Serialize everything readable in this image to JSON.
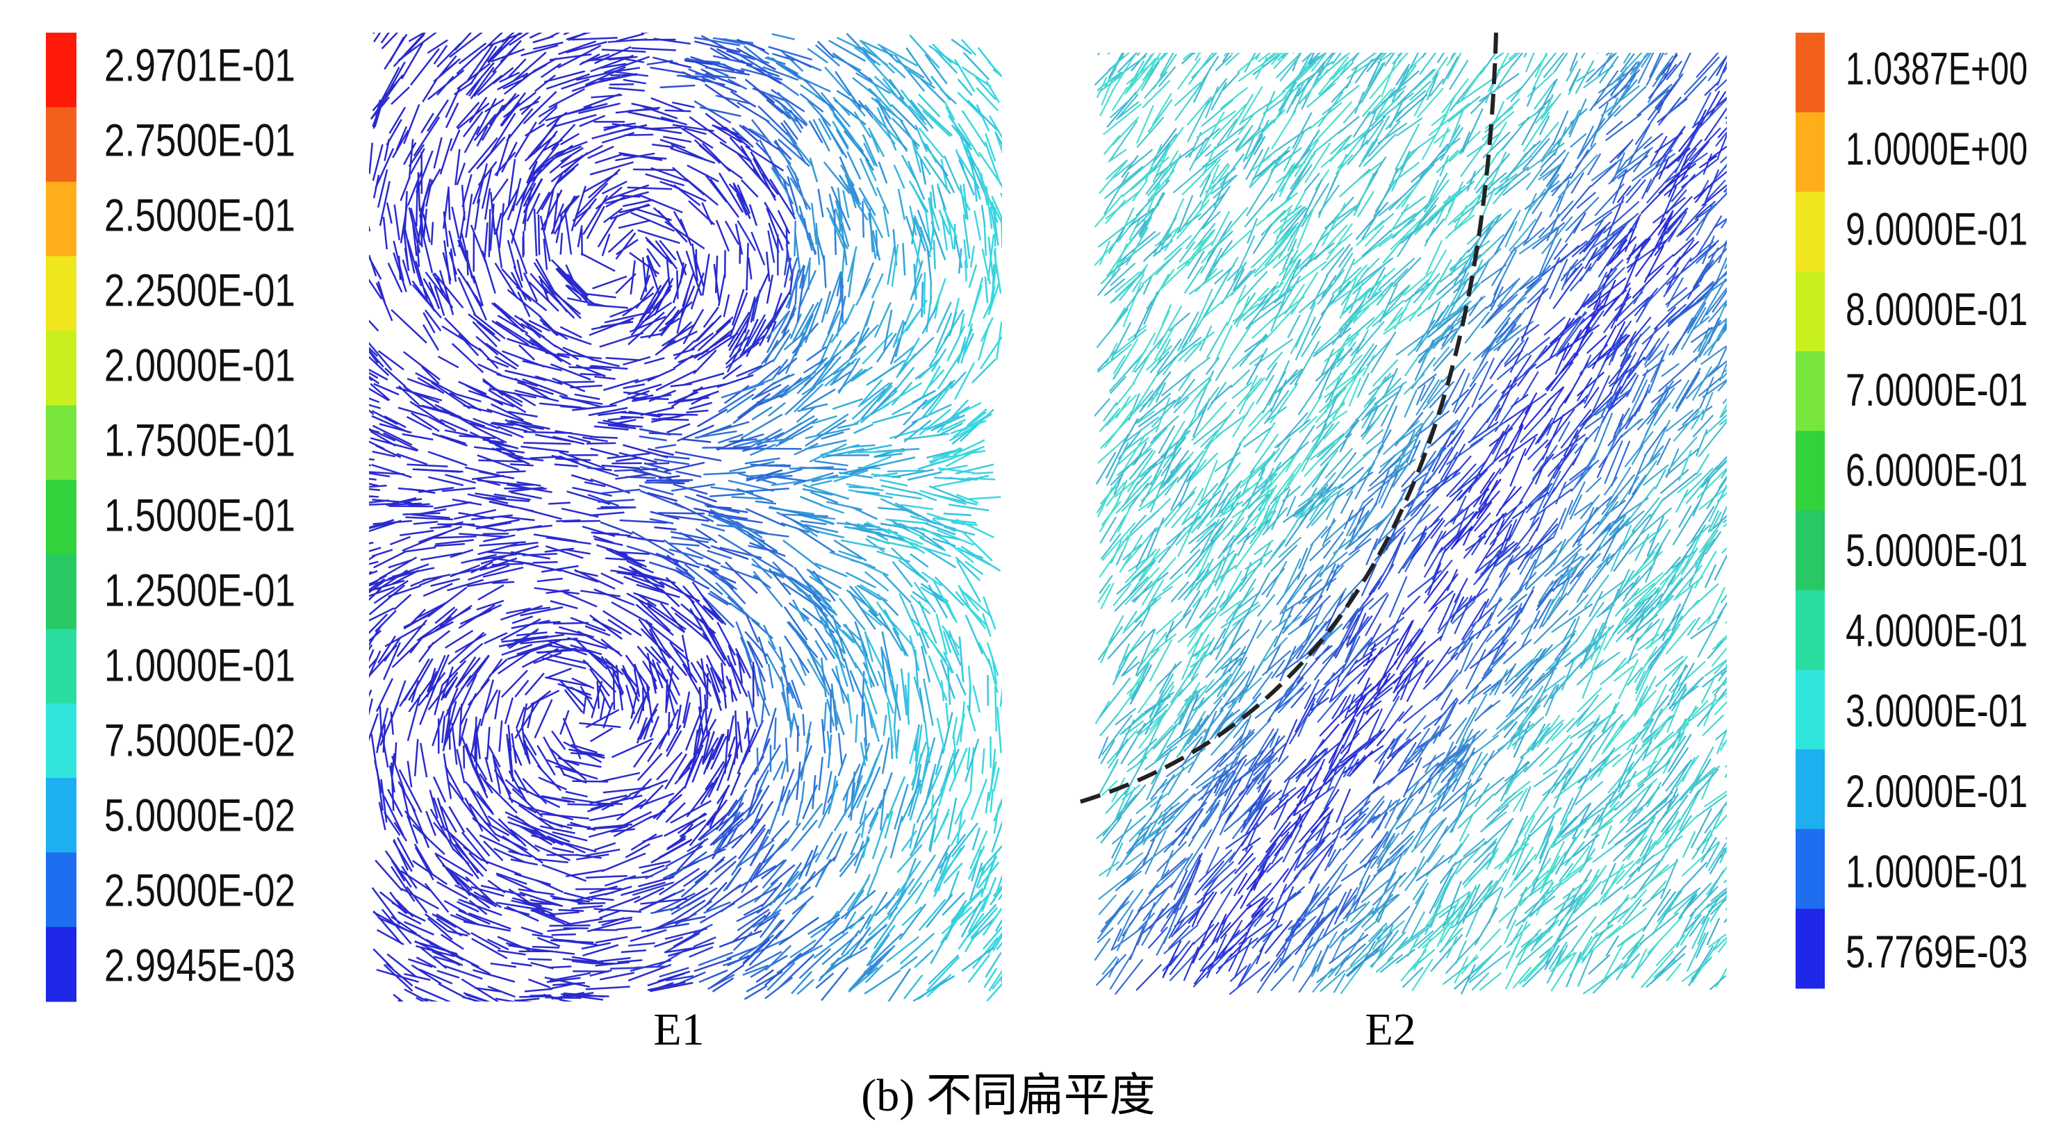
{
  "left_legend": {
    "labels": [
      "2.9701E-01",
      "2.7500E-01",
      "2.5000E-01",
      "2.2500E-01",
      "2.0000E-01",
      "1.7500E-01",
      "1.5000E-01",
      "1.2500E-01",
      "1.0000E-01",
      "7.5000E-02",
      "5.0000E-02",
      "2.5000E-02",
      "2.9945E-03"
    ]
  },
  "right_legend": {
    "labels": [
      "1.0387E+00",
      "1.0000E+00",
      "9.0000E-01",
      "8.0000E-01",
      "7.0000E-01",
      "6.0000E-01",
      "5.0000E-01",
      "4.0000E-01",
      "3.0000E-01",
      "2.0000E-01",
      "1.0000E-01",
      "5.7769E-03"
    ]
  },
  "panels": [
    {
      "label": "E1"
    },
    {
      "label": "E2"
    }
  ],
  "caption": "(b) 不同扁平度"
}
